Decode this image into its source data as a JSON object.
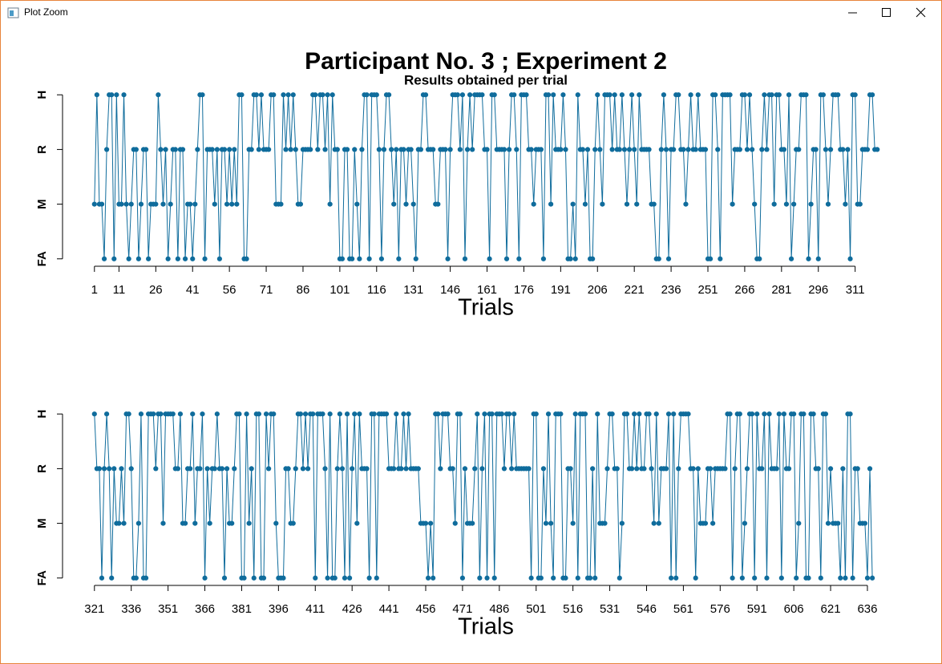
{
  "window": {
    "title": "Plot Zoom"
  },
  "chart_data": [
    {
      "type": "line",
      "title": "Participant No. 3 ; Experiment 2",
      "subtitle": "Results obtained per trial",
      "xlabel": "Trials",
      "color": "#0f6c9c",
      "xlim": [
        -12,
        333
      ],
      "xticks": [
        1,
        11,
        26,
        41,
        56,
        71,
        86,
        101,
        116,
        131,
        146,
        161,
        176,
        191,
        206,
        221,
        236,
        251,
        266,
        281,
        296,
        311
      ],
      "ylim": [
        0.85,
        4.15
      ],
      "yticks": [
        {
          "value": 1,
          "label": "FA"
        },
        {
          "value": 2,
          "label": "M"
        },
        {
          "value": 3,
          "label": "R"
        },
        {
          "value": 4,
          "label": "H"
        }
      ],
      "x": [
        1,
        2,
        3,
        4,
        5,
        6,
        7,
        8,
        9,
        10,
        11,
        12,
        13,
        14,
        15,
        16,
        17,
        18,
        19,
        20,
        21,
        22,
        23,
        24,
        25,
        26,
        27,
        28,
        29,
        30,
        31,
        32,
        33,
        34,
        35,
        36,
        37,
        38,
        39,
        40,
        41,
        42,
        43,
        44,
        45,
        46,
        47,
        48,
        49,
        50,
        51,
        52,
        53,
        54,
        55,
        56,
        57,
        58,
        59,
        60,
        61,
        62,
        63,
        64,
        65,
        66,
        67,
        68,
        69,
        70,
        71,
        72,
        73,
        74,
        75,
        76,
        77,
        78,
        79,
        80,
        81,
        82,
        83,
        84,
        85,
        86,
        87,
        88,
        89,
        90,
        91,
        92,
        93,
        94,
        95,
        96,
        97,
        98,
        99,
        100,
        101,
        102,
        103,
        104,
        105,
        106,
        107,
        108,
        109,
        110,
        111,
        112,
        113,
        114,
        115,
        116,
        117,
        118,
        119,
        120,
        121,
        122,
        123,
        124,
        125,
        126,
        127,
        128,
        129,
        130,
        131,
        132,
        133,
        134,
        135,
        136,
        137,
        138,
        139,
        140,
        141,
        142,
        143,
        144,
        145,
        146,
        147,
        148,
        149,
        150,
        151,
        152,
        153,
        154,
        155,
        156,
        157,
        158,
        159,
        160,
        161,
        162,
        163,
        164,
        165,
        166,
        167,
        168,
        169,
        170,
        171,
        172,
        173,
        174,
        175,
        176,
        177,
        178,
        179,
        180,
        181,
        182,
        183,
        184,
        185,
        186,
        187,
        188,
        189,
        190,
        191,
        192,
        193,
        194,
        195,
        196,
        197,
        198,
        199,
        200,
        201,
        202,
        203,
        204,
        205,
        206,
        207,
        208,
        209,
        210,
        211,
        212,
        213,
        214,
        215,
        216,
        217,
        218,
        219,
        220,
        221,
        222,
        223,
        224,
        225,
        226,
        227,
        228,
        229,
        230,
        231,
        232,
        233,
        234,
        235,
        236,
        237,
        238,
        239,
        240,
        241,
        242,
        243,
        244,
        245,
        246,
        247,
        248,
        249,
        250,
        251,
        252,
        253,
        254,
        255,
        256,
        257,
        258,
        259,
        260,
        261,
        262,
        263,
        264,
        265,
        266,
        267,
        268,
        269,
        270,
        271,
        272,
        273,
        274,
        275,
        276,
        277,
        278,
        279,
        280,
        281,
        282,
        283,
        284,
        285,
        286,
        287,
        288,
        289,
        290,
        291,
        292,
        293,
        294,
        295,
        296,
        297,
        298,
        299,
        300,
        301,
        302,
        303,
        304,
        305,
        306,
        307,
        308,
        309,
        310,
        311,
        312,
        313,
        314,
        315,
        316,
        317,
        318,
        319,
        320
      ],
      "values": [
        2,
        4,
        2,
        2,
        1,
        3,
        4,
        4,
        1,
        4,
        2,
        2,
        4,
        2,
        1,
        2,
        3,
        3,
        1,
        2,
        3,
        3,
        1,
        2,
        2,
        2,
        4,
        3,
        2,
        3,
        1,
        2,
        3,
        3,
        1,
        3,
        3,
        1,
        2,
        2,
        1,
        2,
        3,
        4,
        4,
        1,
        3,
        3,
        3,
        2,
        3,
        1,
        3,
        3,
        2,
        3,
        2,
        3,
        2,
        4,
        4,
        1,
        1,
        3,
        3,
        4,
        4,
        3,
        4,
        3,
        3,
        3,
        4,
        4,
        2,
        2,
        2,
        4,
        3,
        4,
        3,
        4,
        3,
        2,
        2,
        3,
        3,
        3,
        3,
        4,
        4,
        3,
        4,
        4,
        3,
        4,
        2,
        4,
        3,
        3,
        1,
        1,
        3,
        3,
        1,
        1,
        3,
        2,
        1,
        3,
        4,
        4,
        1,
        4,
        4,
        4,
        3,
        1,
        3,
        4,
        4,
        3,
        2,
        3,
        1,
        3,
        3,
        2,
        3,
        3,
        2,
        1,
        3,
        3,
        4,
        4,
        3,
        3,
        3,
        2,
        2,
        3,
        3,
        3,
        1,
        3,
        4,
        4,
        4,
        3,
        4,
        1,
        3,
        4,
        3,
        4,
        4,
        4,
        4,
        3,
        3,
        1,
        4,
        4,
        3,
        3,
        3,
        3,
        1,
        3,
        4,
        4,
        3,
        1,
        4,
        4,
        4,
        3,
        3,
        2,
        3,
        3,
        3,
        1,
        4,
        4,
        2,
        4,
        3,
        3,
        3,
        4,
        3,
        1,
        1,
        2,
        1,
        4,
        3,
        3,
        2,
        3,
        1,
        1,
        3,
        4,
        3,
        2,
        4,
        4,
        4,
        3,
        4,
        3,
        3,
        4,
        3,
        2,
        3,
        4,
        3,
        2,
        4,
        3,
        3,
        3,
        3,
        2,
        2,
        1,
        1,
        3,
        4,
        3,
        1,
        3,
        3,
        4,
        4,
        3,
        3,
        2,
        3,
        4,
        3,
        3,
        4,
        3,
        3,
        3,
        1,
        1,
        4,
        4,
        3,
        1,
        4,
        4,
        4,
        4,
        2,
        3,
        3,
        3,
        4,
        4,
        3,
        4,
        3,
        2,
        1,
        1,
        3,
        4,
        3,
        4,
        4,
        2,
        4,
        4,
        3,
        3,
        2,
        4,
        1,
        2,
        3,
        3,
        4,
        4,
        4,
        1,
        2,
        3,
        3,
        1,
        4,
        4,
        3,
        2,
        3,
        4,
        4,
        4,
        3,
        3,
        2,
        3,
        1,
        4,
        4,
        2,
        2,
        3,
        3,
        3,
        4,
        4,
        3,
        3
      ]
    },
    {
      "type": "line",
      "xlabel": "Trials",
      "color": "#0f6c9c",
      "xlim": [
        308,
        653
      ],
      "xticks": [
        321,
        336,
        351,
        366,
        381,
        396,
        411,
        426,
        441,
        456,
        471,
        486,
        501,
        516,
        531,
        546,
        561,
        576,
        591,
        606,
        621,
        636
      ],
      "ylim": [
        0.85,
        4.15
      ],
      "yticks": [
        {
          "value": 1,
          "label": "FA"
        },
        {
          "value": 2,
          "label": "M"
        },
        {
          "value": 3,
          "label": "R"
        },
        {
          "value": 4,
          "label": "H"
        }
      ],
      "x": [
        321,
        322,
        323,
        324,
        325,
        326,
        327,
        328,
        329,
        330,
        331,
        332,
        333,
        334,
        335,
        336,
        337,
        338,
        339,
        340,
        341,
        342,
        343,
        344,
        345,
        346,
        347,
        348,
        349,
        350,
        351,
        352,
        353,
        354,
        355,
        356,
        357,
        358,
        359,
        360,
        361,
        362,
        363,
        364,
        365,
        366,
        367,
        368,
        369,
        370,
        371,
        372,
        373,
        374,
        375,
        376,
        377,
        378,
        379,
        380,
        381,
        382,
        383,
        384,
        385,
        386,
        387,
        388,
        389,
        390,
        391,
        392,
        393,
        394,
        395,
        396,
        397,
        398,
        399,
        400,
        401,
        402,
        403,
        404,
        405,
        406,
        407,
        408,
        409,
        410,
        411,
        412,
        413,
        414,
        415,
        416,
        417,
        418,
        419,
        420,
        421,
        422,
        423,
        424,
        425,
        426,
        427,
        428,
        429,
        430,
        431,
        432,
        433,
        434,
        435,
        436,
        437,
        438,
        439,
        440,
        441,
        442,
        443,
        444,
        445,
        446,
        447,
        448,
        449,
        450,
        451,
        452,
        453,
        454,
        455,
        456,
        457,
        458,
        459,
        460,
        461,
        462,
        463,
        464,
        465,
        466,
        467,
        468,
        469,
        470,
        471,
        472,
        473,
        474,
        475,
        476,
        477,
        478,
        479,
        480,
        481,
        482,
        483,
        484,
        485,
        486,
        487,
        488,
        489,
        490,
        491,
        492,
        493,
        494,
        495,
        496,
        497,
        498,
        499,
        500,
        501,
        502,
        503,
        504,
        505,
        506,
        507,
        508,
        509,
        510,
        511,
        512,
        513,
        514,
        515,
        516,
        517,
        518,
        519,
        520,
        521,
        522,
        523,
        524,
        525,
        526,
        527,
        528,
        529,
        530,
        531,
        532,
        533,
        534,
        535,
        536,
        537,
        538,
        539,
        540,
        541,
        542,
        543,
        544,
        545,
        546,
        547,
        548,
        549,
        550,
        551,
        552,
        553,
        554,
        555,
        556,
        557,
        558,
        559,
        560,
        561,
        562,
        563,
        564,
        565,
        566,
        567,
        568,
        569,
        570,
        571,
        572,
        573,
        574,
        575,
        576,
        577,
        578,
        579,
        580,
        581,
        582,
        583,
        584,
        585,
        586,
        587,
        588,
        589,
        590,
        591,
        592,
        593,
        594,
        595,
        596,
        597,
        598,
        599,
        600,
        601,
        602,
        603,
        604,
        605,
        606,
        607,
        608,
        609,
        610,
        611,
        612,
        613,
        614,
        615,
        616,
        617,
        618,
        619,
        620,
        621,
        622,
        623,
        624,
        625,
        626,
        627,
        628,
        629,
        630,
        631,
        632,
        633,
        634,
        635,
        636,
        637,
        638
      ],
      "values": [
        4,
        3,
        3,
        1,
        3,
        4,
        3,
        1,
        3,
        2,
        2,
        3,
        2,
        4,
        4,
        3,
        1,
        1,
        2,
        4,
        1,
        1,
        4,
        4,
        4,
        3,
        4,
        4,
        2,
        4,
        4,
        4,
        4,
        3,
        3,
        4,
        2,
        2,
        3,
        3,
        4,
        2,
        3,
        3,
        4,
        1,
        3,
        2,
        3,
        3,
        4,
        3,
        3,
        1,
        3,
        2,
        2,
        3,
        4,
        4,
        1,
        1,
        4,
        2,
        3,
        1,
        4,
        4,
        1,
        1,
        4,
        3,
        4,
        4,
        2,
        1,
        1,
        1,
        3,
        3,
        2,
        2,
        3,
        4,
        4,
        3,
        4,
        3,
        4,
        4,
        1,
        4,
        4,
        4,
        3,
        1,
        4,
        1,
        1,
        3,
        4,
        3,
        1,
        4,
        1,
        3,
        4,
        2,
        4,
        3,
        3,
        3,
        1,
        4,
        4,
        1,
        4,
        4,
        4,
        4,
        3,
        3,
        3,
        4,
        3,
        3,
        4,
        3,
        4,
        3,
        3,
        3,
        3,
        2,
        2,
        2,
        1,
        2,
        1,
        4,
        4,
        3,
        4,
        4,
        4,
        3,
        3,
        2,
        4,
        4,
        1,
        3,
        2,
        2,
        2,
        3,
        4,
        1,
        3,
        4,
        1,
        4,
        4,
        1,
        4,
        4,
        4,
        3,
        4,
        4,
        3,
        4,
        3,
        3,
        3,
        3,
        3,
        3,
        1,
        4,
        4,
        1,
        1,
        3,
        2,
        4,
        2,
        1,
        4,
        4,
        4,
        1,
        1,
        3,
        3,
        2,
        4,
        1,
        4,
        4,
        4,
        1,
        1,
        3,
        1,
        4,
        2,
        2,
        2,
        3,
        4,
        4,
        3,
        3,
        1,
        2,
        4,
        4,
        3,
        3,
        4,
        3,
        4,
        3,
        3,
        4,
        4,
        3,
        2,
        4,
        2,
        3,
        3,
        3,
        4,
        1,
        4,
        1,
        3,
        4,
        4,
        4,
        4,
        3,
        3,
        1,
        3,
        2,
        2,
        2,
        3,
        3,
        2,
        3,
        3,
        3,
        3,
        3,
        4,
        4,
        1,
        3,
        4,
        4,
        1,
        2,
        3,
        4,
        4,
        1,
        4,
        3,
        3,
        4,
        1,
        4,
        3,
        3,
        3,
        4,
        1,
        4,
        3,
        3,
        4,
        4,
        1,
        2,
        4,
        4,
        1,
        1,
        4,
        4,
        3,
        3,
        1,
        4,
        4,
        2,
        3,
        2,
        2,
        2,
        1,
        3,
        1,
        4,
        4,
        1,
        3,
        3,
        2,
        2,
        2,
        1,
        3,
        1
      ]
    }
  ]
}
